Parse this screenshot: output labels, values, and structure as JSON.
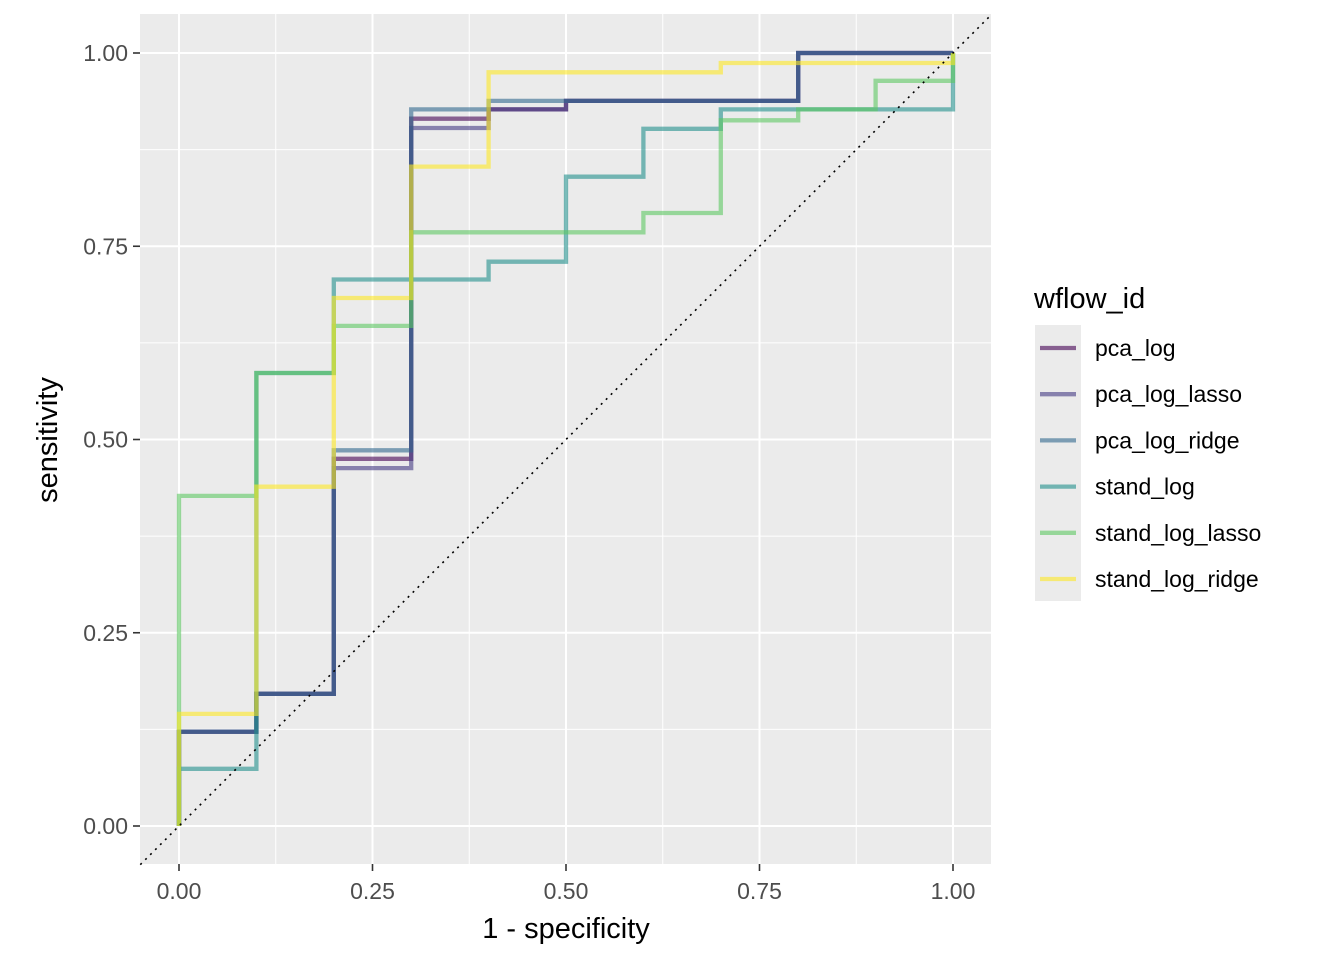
{
  "chart_data": {
    "type": "line",
    "subtype": "step (ROC curves)",
    "title": "",
    "xlabel": "1 - specificity",
    "ylabel": "sensitivity",
    "xlim": [
      0,
      1
    ],
    "ylim": [
      0,
      1
    ],
    "x_ticks": [
      "0.00",
      "0.25",
      "0.50",
      "0.75",
      "1.00"
    ],
    "y_ticks": [
      "0.00",
      "0.25",
      "0.50",
      "0.75",
      "1.00"
    ],
    "x_tick_values": [
      0,
      0.25,
      0.5,
      0.75,
      1
    ],
    "y_tick_values": [
      0,
      0.25,
      0.5,
      0.75,
      1
    ],
    "grid": true,
    "reference_line": {
      "type": "diagonal",
      "style": "dotted",
      "from": [
        0,
        0
      ],
      "to": [
        1,
        1
      ]
    },
    "legend": {
      "title": "wflow_id",
      "placement": "right"
    },
    "series": [
      {
        "name": "pca_log",
        "color": "#440154",
        "points": [
          [
            0,
            0
          ],
          [
            0,
            0.122
          ],
          [
            0.1,
            0.122
          ],
          [
            0.1,
            0.171
          ],
          [
            0.2,
            0.171
          ],
          [
            0.2,
            0.475
          ],
          [
            0.3,
            0.475
          ],
          [
            0.3,
            0.915
          ],
          [
            0.4,
            0.915
          ],
          [
            0.4,
            0.927
          ],
          [
            0.5,
            0.927
          ],
          [
            0.5,
            0.938
          ],
          [
            0.8,
            0.938
          ],
          [
            0.8,
            1.0
          ],
          [
            1,
            1.0
          ]
        ]
      },
      {
        "name": "pca_log_lasso",
        "color": "#443A83",
        "points": [
          [
            0,
            0
          ],
          [
            0,
            0.122
          ],
          [
            0.1,
            0.122
          ],
          [
            0.1,
            0.171
          ],
          [
            0.2,
            0.171
          ],
          [
            0.2,
            0.463
          ],
          [
            0.3,
            0.463
          ],
          [
            0.3,
            0.903
          ],
          [
            0.4,
            0.903
          ],
          [
            0.4,
            0.927
          ],
          [
            0.5,
            0.927
          ],
          [
            0.5,
            0.938
          ],
          [
            0.8,
            0.938
          ],
          [
            0.8,
            1.0
          ],
          [
            1,
            1.0
          ]
        ]
      },
      {
        "name": "pca_log_ridge",
        "color": "#31688E",
        "points": [
          [
            0,
            0
          ],
          [
            0,
            0.122
          ],
          [
            0.1,
            0.122
          ],
          [
            0.1,
            0.171
          ],
          [
            0.2,
            0.171
          ],
          [
            0.2,
            0.486
          ],
          [
            0.3,
            0.486
          ],
          [
            0.3,
            0.927
          ],
          [
            0.4,
            0.927
          ],
          [
            0.4,
            0.938
          ],
          [
            0.8,
            0.938
          ],
          [
            0.8,
            1.0
          ],
          [
            1,
            1.0
          ]
        ]
      },
      {
        "name": "stand_log",
        "color": "#21908C",
        "points": [
          [
            0,
            0
          ],
          [
            0,
            0.074
          ],
          [
            0.1,
            0.074
          ],
          [
            0.1,
            0.586
          ],
          [
            0.2,
            0.586
          ],
          [
            0.2,
            0.707
          ],
          [
            0.4,
            0.707
          ],
          [
            0.4,
            0.73
          ],
          [
            0.5,
            0.73
          ],
          [
            0.5,
            0.84
          ],
          [
            0.6,
            0.84
          ],
          [
            0.6,
            0.902
          ],
          [
            0.7,
            0.902
          ],
          [
            0.7,
            0.927
          ],
          [
            1,
            0.927
          ],
          [
            1,
            1.0
          ]
        ]
      },
      {
        "name": "stand_log_lasso",
        "color": "#5DC863",
        "points": [
          [
            0,
            0
          ],
          [
            0,
            0.427
          ],
          [
            0.1,
            0.427
          ],
          [
            0.1,
            0.586
          ],
          [
            0.2,
            0.586
          ],
          [
            0.2,
            0.647
          ],
          [
            0.3,
            0.647
          ],
          [
            0.3,
            0.768
          ],
          [
            0.6,
            0.768
          ],
          [
            0.6,
            0.793
          ],
          [
            0.7,
            0.793
          ],
          [
            0.7,
            0.913
          ],
          [
            0.8,
            0.913
          ],
          [
            0.8,
            0.927
          ],
          [
            0.9,
            0.927
          ],
          [
            0.9,
            0.964
          ],
          [
            1,
            0.964
          ],
          [
            1,
            1.0
          ]
        ]
      },
      {
        "name": "stand_log_ridge",
        "color": "#FDE725",
        "points": [
          [
            0,
            0
          ],
          [
            0,
            0.145
          ],
          [
            0.1,
            0.145
          ],
          [
            0.1,
            0.439
          ],
          [
            0.2,
            0.439
          ],
          [
            0.2,
            0.683
          ],
          [
            0.3,
            0.683
          ],
          [
            0.3,
            0.853
          ],
          [
            0.4,
            0.853
          ],
          [
            0.4,
            0.975
          ],
          [
            0.7,
            0.975
          ],
          [
            0.7,
            0.987
          ],
          [
            1,
            0.987
          ],
          [
            1,
            1.0
          ]
        ]
      }
    ]
  }
}
